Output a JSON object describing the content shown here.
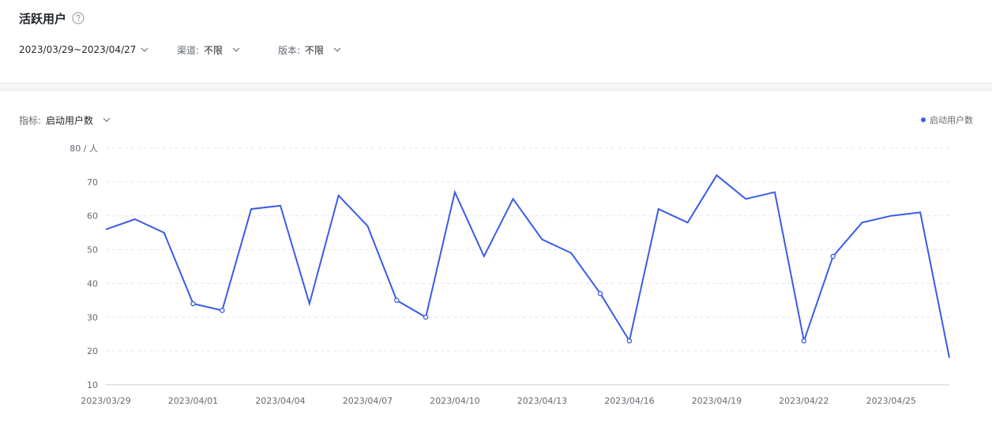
{
  "header": {
    "title": "活跃用户",
    "help_icon": "question-circle-icon"
  },
  "filters": {
    "date_range": "2023/03/29~2023/04/27",
    "channel_label": "渠道:",
    "channel_value": "不限",
    "version_label": "版本:",
    "version_value": "不限"
  },
  "metric": {
    "label": "指标:",
    "value": "启动用户数"
  },
  "colors": {
    "line": "#3b5be6",
    "grid": "#e5e6eb",
    "axis": "#c9cdd4"
  },
  "chart_data": {
    "type": "line",
    "y_unit_label": "80 / 人",
    "ylim": [
      10,
      80
    ],
    "y_ticks": [
      10,
      20,
      30,
      40,
      50,
      60,
      70
    ],
    "grid": true,
    "legend_position": "top-right",
    "x_tick_labels": [
      "2023/03/29",
      "2023/04/01",
      "2023/04/04",
      "2023/04/07",
      "2023/04/10",
      "2023/04/13",
      "2023/04/16",
      "2023/04/19",
      "2023/04/22",
      "2023/04/25"
    ],
    "x": [
      "2023/03/29",
      "2023/03/30",
      "2023/03/31",
      "2023/04/01",
      "2023/04/02",
      "2023/04/03",
      "2023/04/04",
      "2023/04/05",
      "2023/04/06",
      "2023/04/07",
      "2023/04/08",
      "2023/04/09",
      "2023/04/10",
      "2023/04/11",
      "2023/04/12",
      "2023/04/13",
      "2023/04/14",
      "2023/04/15",
      "2023/04/16",
      "2023/04/17",
      "2023/04/18",
      "2023/04/19",
      "2023/04/20",
      "2023/04/21",
      "2023/04/22",
      "2023/04/23",
      "2023/04/24",
      "2023/04/25",
      "2023/04/26",
      "2023/04/27"
    ],
    "series": [
      {
        "name": "启动用户数",
        "values": [
          56,
          59,
          55,
          34,
          32,
          62,
          63,
          34,
          66,
          57,
          35,
          30,
          67,
          48,
          65,
          53,
          49,
          37,
          23,
          62,
          58,
          72,
          65,
          67,
          23,
          48,
          58,
          60,
          61,
          18
        ]
      }
    ],
    "marked_points": [
      3,
      4,
      10,
      11,
      17,
      18,
      24,
      25
    ]
  }
}
